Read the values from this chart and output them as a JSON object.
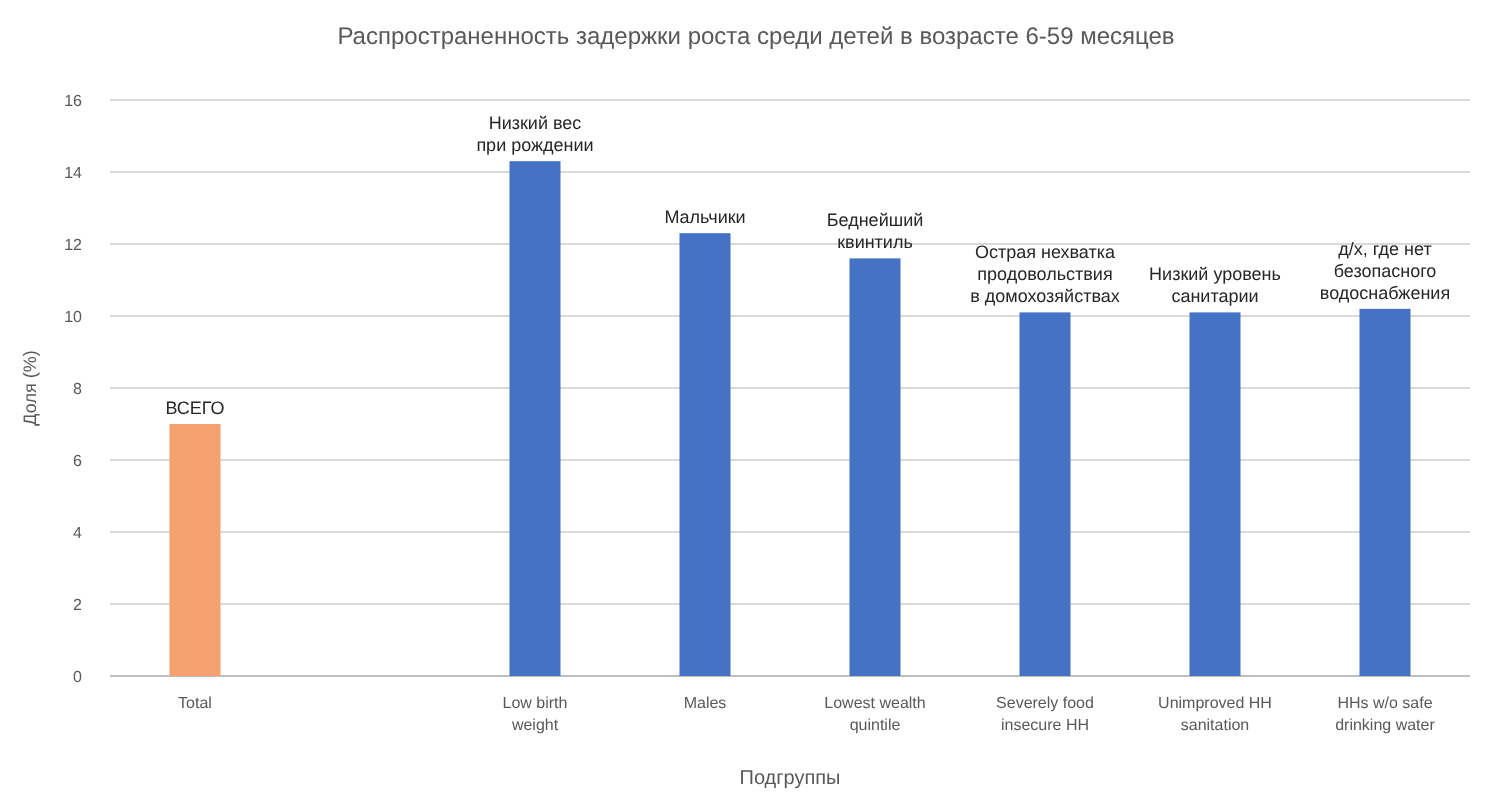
{
  "chart_data": {
    "type": "bar",
    "title": "Распространенность задержки роста среди детей в возрасте 6-59 месяцев",
    "xlabel": "Подгруппы",
    "ylabel": "Доля (%)",
    "categories": [
      "Total",
      null,
      "Low birth weight",
      "Males",
      "Lowest wealth quintile",
      "Severely food insecure HH",
      "Unimproved HH sanitation",
      "HHs w/o safe drinking water"
    ],
    "values": [
      7.0,
      null,
      14.3,
      12.3,
      11.6,
      10.1,
      10.1,
      10.2
    ],
    "colors": [
      "#f4a16f",
      null,
      "#4472c4",
      "#4472c4",
      "#4472c4",
      "#4472c4",
      "#4472c4",
      "#4472c4"
    ],
    "ylim": [
      0,
      16
    ],
    "yticks": [
      0,
      2,
      4,
      6,
      8,
      10,
      12,
      14,
      16
    ],
    "grid": "y",
    "annotations": [
      {
        "text": "ВСЕГО",
        "x": "Total",
        "y": 7.0
      },
      {
        "text": "Низкий вес\nпри рождении",
        "x": "Low birth weight",
        "y": 14.3
      },
      {
        "text": "Мальчики",
        "x": "Males",
        "y": 12.3
      },
      {
        "text": "Беднейший\nквинтиль",
        "x": "Lowest wealth quintile",
        "y": 11.6
      },
      {
        "text": "Острая нехватка\nпродовольствия\nв домохозяйствах",
        "x": "Severely food insecure HH",
        "y": 10.1
      },
      {
        "text": "Низкий уровень\nсанитарии",
        "x": "Unimproved HH sanitation",
        "y": 10.1
      },
      {
        "text": "д/х, где нет\nбезопасного\nводоснабжения",
        "x": "HHs w/o safe drinking water",
        "y": 10.2
      }
    ]
  }
}
